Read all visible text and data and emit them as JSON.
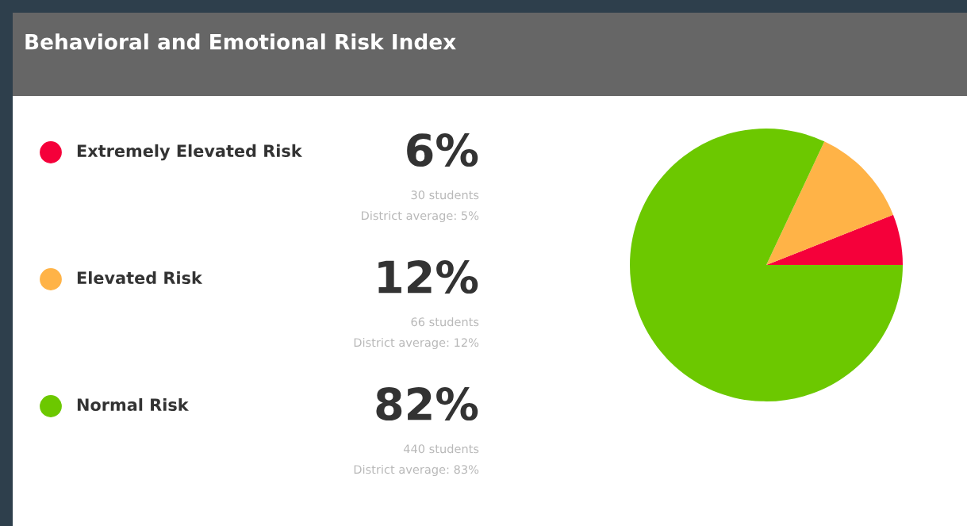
{
  "chart_data": {
    "type": "pie",
    "title": "Behavioral and Emotional Risk Index",
    "categories": [
      "Extremely Elevated Risk",
      "Elevated Risk",
      "Normal Risk"
    ],
    "values": [
      6,
      12,
      82
    ],
    "colors": [
      "#f5003a",
      "#ffb347",
      "#6cc800"
    ],
    "value_labels": [
      "6%",
      "12%",
      "82%"
    ],
    "annotations": [
      "30 students",
      "District average: 5%",
      "66 students",
      "District average: 12%",
      "440 students",
      "District average: 83%"
    ],
    "legend": "left"
  }
}
